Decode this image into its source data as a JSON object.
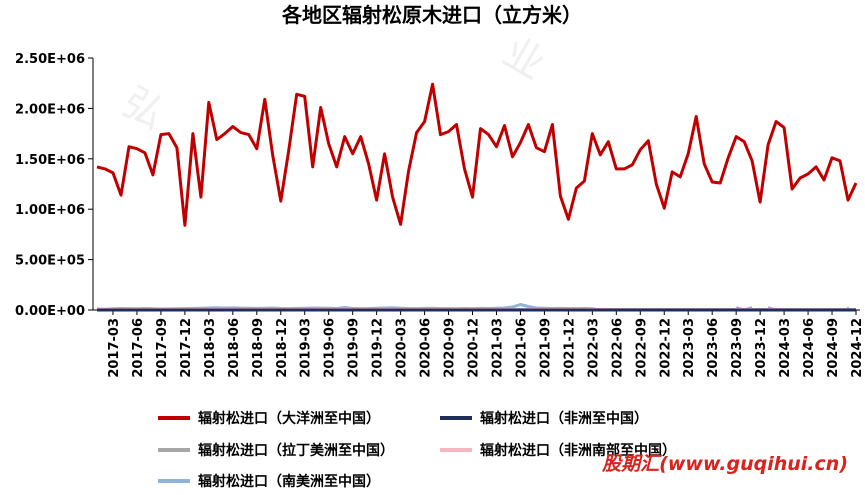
{
  "chart_data": {
    "type": "line",
    "title": "各地区辐射松原木进口（立方米）",
    "xlabel": "",
    "ylabel": "",
    "ylim": [
      0,
      2500000
    ],
    "y_ticks": [
      "2.50E+06",
      "2.00E+06",
      "1.50E+06",
      "1.00E+06",
      "5.00E+05",
      "0.00E+00"
    ],
    "x_ticks": [
      "2017-03",
      "2017-06",
      "2017-09",
      "2017-12",
      "2018-03",
      "2018-06",
      "2018-09",
      "2018-12",
      "2019-03",
      "2019-06",
      "2019-09",
      "2019-12",
      "2020-03",
      "2020-06",
      "2020-09",
      "2020-12",
      "2021-03",
      "2021-06",
      "2021-09",
      "2021-12",
      "2022-03",
      "2022-06",
      "2022-09",
      "2022-12",
      "2023-03",
      "2023-06",
      "2023-09",
      "2023-12",
      "2024-03",
      "2024-06",
      "2024-09",
      "2024-12"
    ],
    "grid": false,
    "legend_position": "bottom",
    "x_start": "2017-01",
    "series": [
      {
        "name": "辐射松进口（大洋洲至中国）",
        "color": "#c00000",
        "values": [
          1420000,
          1400000,
          1360000,
          1140000,
          1620000,
          1600000,
          1560000,
          1340000,
          1740000,
          1750000,
          1610000,
          840000,
          1750000,
          1120000,
          2060000,
          1690000,
          1750000,
          1820000,
          1760000,
          1740000,
          1600000,
          2090000,
          1530000,
          1080000,
          1580000,
          2140000,
          2120000,
          1420000,
          2010000,
          1650000,
          1420000,
          1720000,
          1550000,
          1720000,
          1450000,
          1090000,
          1550000,
          1120000,
          850000,
          1380000,
          1760000,
          1870000,
          2240000,
          1740000,
          1770000,
          1840000,
          1400000,
          1120000,
          1800000,
          1740000,
          1620000,
          1830000,
          1520000,
          1660000,
          1840000,
          1610000,
          1570000,
          1840000,
          1130000,
          900000,
          1210000,
          1280000,
          1750000,
          1540000,
          1670000,
          1400000,
          1400000,
          1440000,
          1590000,
          1680000,
          1250000,
          1010000,
          1370000,
          1320000,
          1550000,
          1920000,
          1450000,
          1270000,
          1260000,
          1510000,
          1720000,
          1670000,
          1480000,
          1070000,
          1640000,
          1870000,
          1810000,
          1200000,
          1310000,
          1350000,
          1420000,
          1290000,
          1510000,
          1480000,
          1090000,
          1260000
        ]
      },
      {
        "name": "辐射松进口（非洲至中国）",
        "color": "#1f2f5c",
        "values": [
          0,
          0,
          0,
          0,
          0,
          0,
          0,
          0,
          0,
          0,
          0,
          0,
          0,
          0,
          0,
          0,
          0,
          0,
          0,
          0,
          0,
          0,
          0,
          0,
          0,
          0,
          0,
          0,
          0,
          0,
          0,
          0,
          0,
          0,
          0,
          0,
          0,
          0,
          0,
          0,
          0,
          0,
          0,
          0,
          0,
          0,
          0,
          0,
          0,
          0,
          0,
          0,
          0,
          0,
          0,
          0,
          0,
          0,
          0,
          0,
          0,
          0,
          0,
          0,
          0,
          0,
          0,
          0,
          0,
          0,
          0,
          0,
          0,
          0,
          0,
          0,
          0,
          0,
          0,
          0,
          0,
          0,
          0,
          0,
          0,
          0,
          0,
          0,
          0,
          0,
          0,
          0,
          0,
          0,
          0,
          0
        ]
      },
      {
        "name": "辐射松进口（拉丁美洲至中国）",
        "color": "#a6a6a6",
        "values": [
          0,
          0,
          0,
          0,
          0,
          0,
          0,
          0,
          0,
          0,
          0,
          0,
          0,
          0,
          0,
          0,
          0,
          0,
          0,
          0,
          0,
          0,
          0,
          0,
          0,
          0,
          0,
          0,
          0,
          0,
          0,
          0,
          0,
          0,
          0,
          0,
          0,
          0,
          0,
          0,
          0,
          0,
          0,
          0,
          0,
          0,
          0,
          0,
          0,
          0,
          0,
          0,
          0,
          0,
          0,
          0,
          0,
          0,
          0,
          0,
          0,
          0,
          0,
          0,
          0,
          0,
          0,
          0,
          0,
          0,
          0,
          0,
          0,
          0,
          0,
          0,
          0,
          0,
          0,
          0,
          0,
          0,
          0,
          0,
          0,
          0,
          0,
          0,
          0,
          0,
          0,
          0,
          0,
          0,
          0,
          0
        ]
      },
      {
        "name": "辐射松进口（非洲南部至中国）",
        "color": "#f4b6c2",
        "values": [
          5000,
          5000,
          5000,
          5000,
          5000,
          5000,
          5000,
          5000,
          5000,
          5000,
          5000,
          5000,
          5000,
          5000,
          5000,
          5000,
          5000,
          5000,
          5000,
          5000,
          5000,
          5000,
          5000,
          5000,
          5000,
          5000,
          5000,
          5000,
          5000,
          5000,
          5000,
          5000,
          5000,
          5000,
          5000,
          5000,
          5000,
          5000,
          5000,
          5000,
          5000,
          5000,
          5000,
          5000,
          5000,
          5000,
          5000,
          5000,
          5000,
          5000,
          5000,
          5000,
          5000,
          5000,
          5000,
          5000,
          5000,
          5000,
          5000,
          5000,
          5000,
          5000,
          5000,
          5000,
          5000,
          5000,
          5000,
          5000,
          5000,
          5000,
          5000,
          5000,
          5000,
          5000,
          5000,
          5000,
          5000,
          5000,
          5000,
          5000,
          5000,
          5000,
          5000,
          5000,
          5000,
          5000,
          5000,
          5000,
          5000,
          5000,
          5000,
          5000,
          5000,
          5000,
          5000,
          5000
        ]
      },
      {
        "name": "辐射松进口（南美洲至中国）",
        "color": "#8fb4dc",
        "values": [
          10000,
          8000,
          12000,
          15000,
          14000,
          13000,
          15000,
          12000,
          10000,
          11000,
          12000,
          14000,
          16000,
          18000,
          20000,
          22000,
          20000,
          21000,
          19000,
          17000,
          16000,
          18000,
          20000,
          15000,
          14000,
          16000,
          18000,
          20000,
          19000,
          17000,
          15000,
          25000,
          16000,
          14000,
          15000,
          18000,
          20000,
          22000,
          18000,
          15000,
          14000,
          16000,
          18000,
          15000,
          14000,
          13000,
          15000,
          14000,
          16000,
          15000,
          18000,
          20000,
          30000,
          55000,
          35000,
          20000,
          18000,
          15000,
          16000,
          15000,
          14000,
          15000,
          13000,
          0,
          null,
          null,
          null,
          null,
          null,
          null,
          null,
          null,
          null,
          null,
          null,
          null,
          null,
          null,
          null,
          null,
          25000,
          0,
          25000,
          null,
          25000,
          0,
          null,
          null,
          null,
          null,
          null,
          null,
          null,
          null,
          15000,
          null
        ]
      }
    ]
  },
  "watermark": "股期汇(www.guqihui.cn)"
}
